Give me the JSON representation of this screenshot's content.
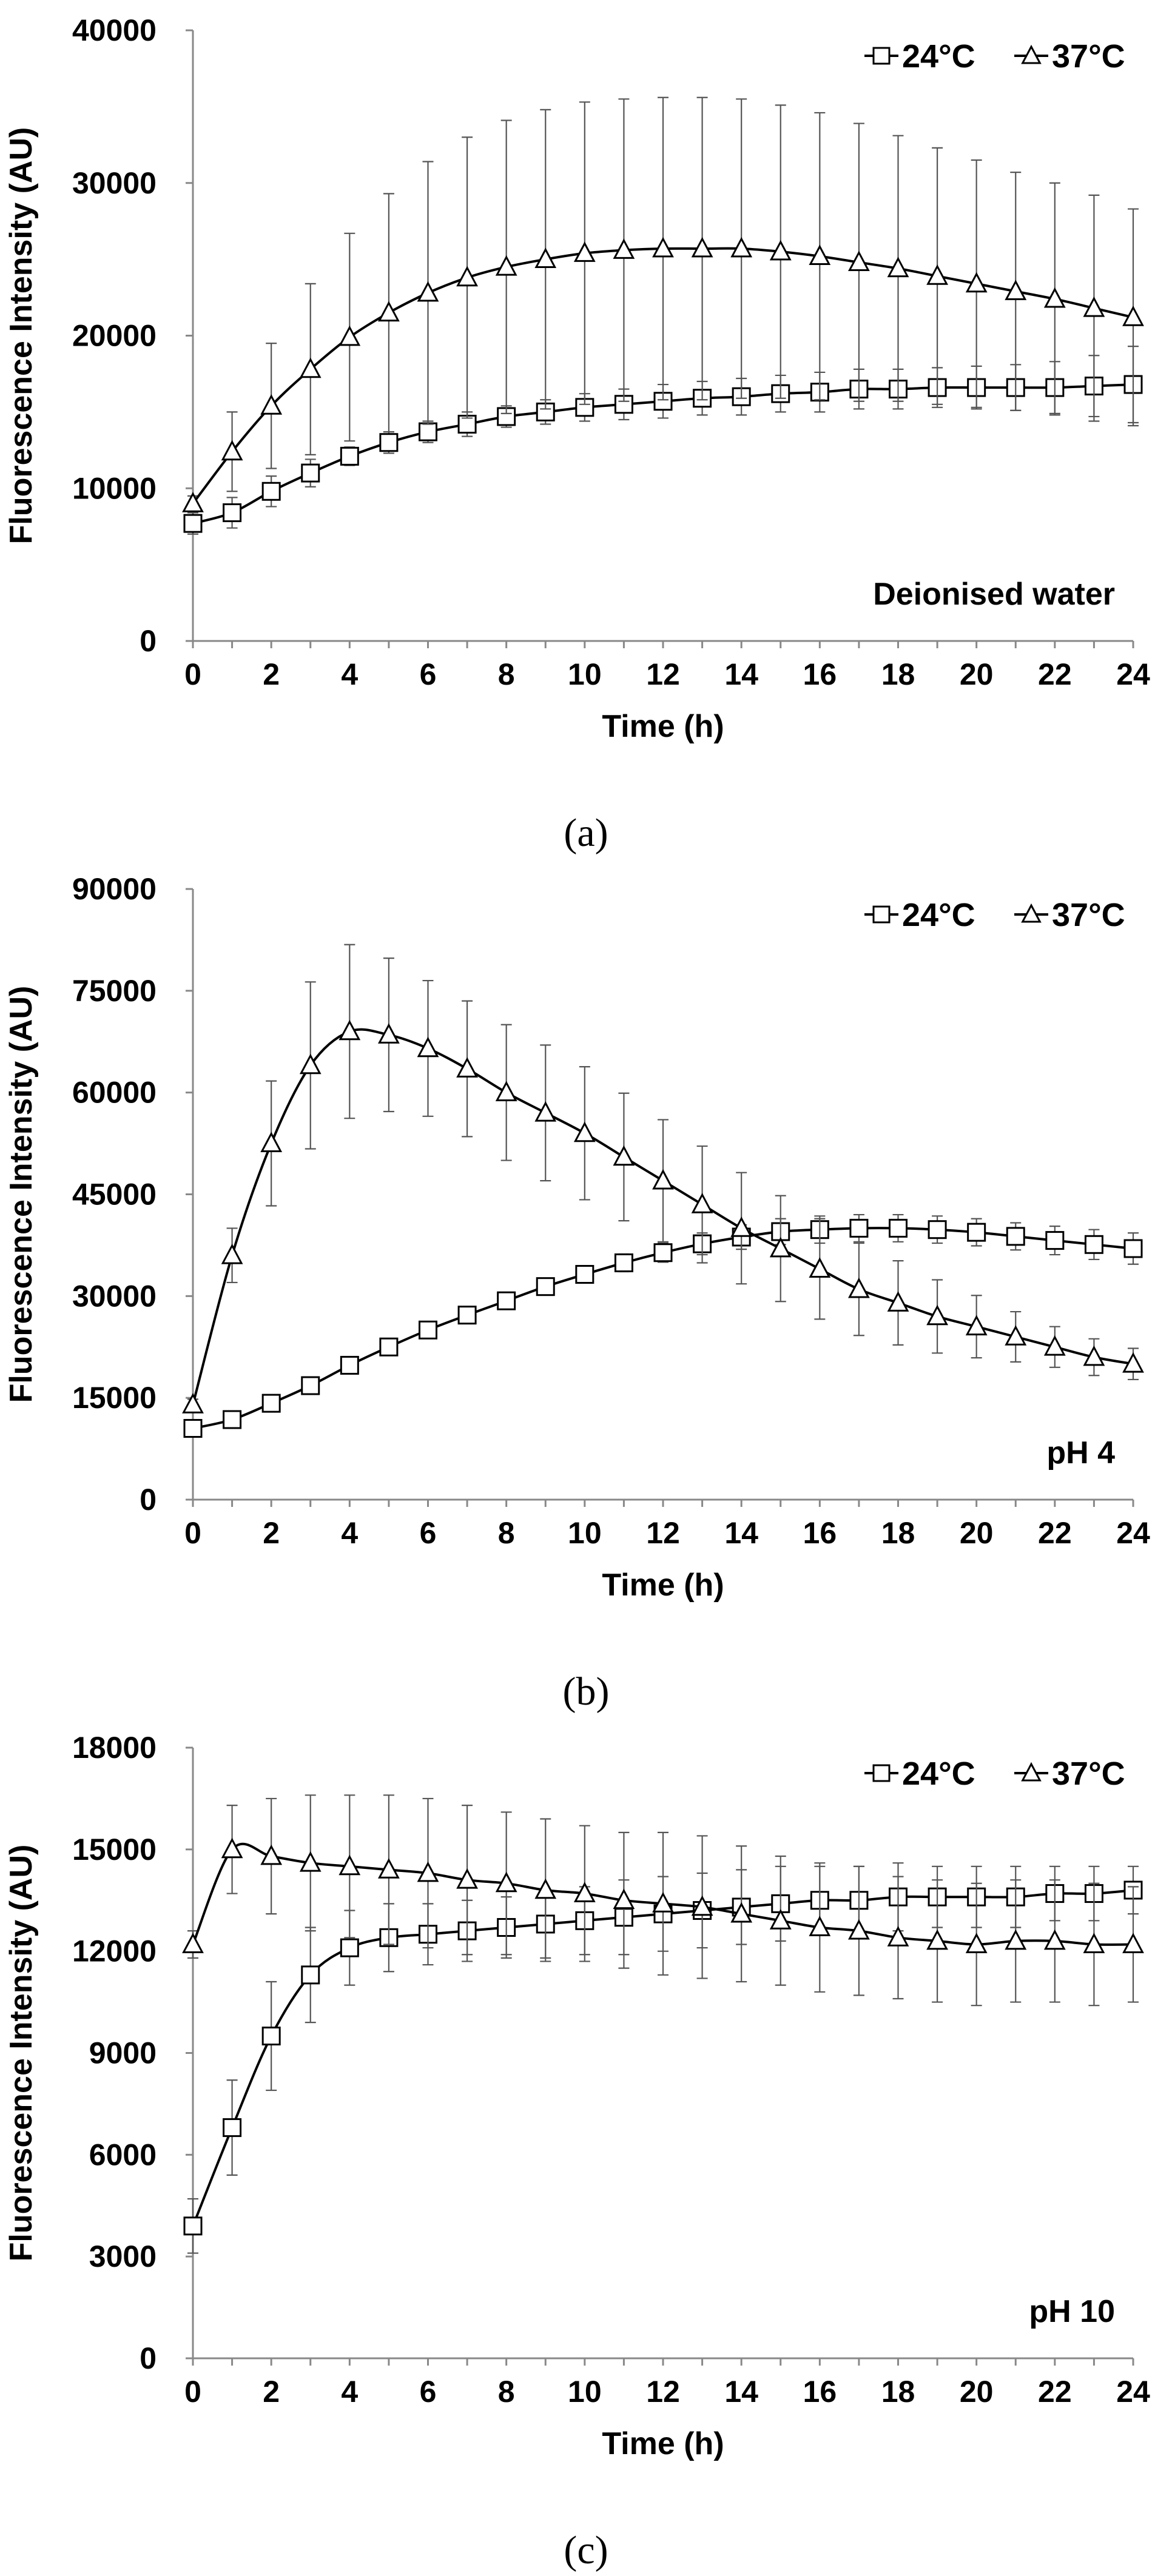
{
  "chart_data": [
    {
      "type": "line",
      "panel": "a",
      "caption": "(a)",
      "annotation": "Deionised water",
      "xlabel": "Time (h)",
      "ylabel": "Fluorescence Intensity (AU)",
      "xlim": [
        0,
        24
      ],
      "ylim": [
        0,
        40000
      ],
      "xticks": [
        0,
        2,
        4,
        6,
        8,
        10,
        12,
        14,
        16,
        18,
        20,
        22,
        24
      ],
      "yticks": [
        0,
        10000,
        20000,
        30000,
        40000
      ],
      "ytick_labels": [
        "0",
        "10000",
        "20000",
        "30000",
        "40000"
      ],
      "legend_position": "top-right",
      "x": [
        0,
        1,
        2,
        3,
        4,
        5,
        6,
        7,
        8,
        9,
        10,
        11,
        12,
        13,
        14,
        15,
        16,
        17,
        18,
        19,
        20,
        21,
        22,
        23,
        24
      ],
      "series": [
        {
          "name": "24°C",
          "marker": "square",
          "values": [
            7700,
            8400,
            9800,
            11000,
            12100,
            13000,
            13700,
            14200,
            14700,
            15000,
            15300,
            15500,
            15700,
            15900,
            16000,
            16200,
            16300,
            16500,
            16500,
            16600,
            16600,
            16600,
            16600,
            16700,
            16800
          ],
          "errors": [
            700,
            1000,
            1000,
            900,
            600,
            700,
            700,
            800,
            700,
            800,
            900,
            1000,
            1100,
            1100,
            1200,
            1200,
            1300,
            1300,
            1300,
            1300,
            1400,
            1500,
            1700,
            2000,
            2500
          ]
        },
        {
          "name": "37°C",
          "marker": "triangle",
          "values": [
            9000,
            12400,
            15400,
            17800,
            19900,
            21500,
            22800,
            23800,
            24500,
            25000,
            25400,
            25600,
            25700,
            25700,
            25700,
            25500,
            25200,
            24800,
            24400,
            23900,
            23400,
            22900,
            22400,
            21800,
            21200
          ],
          "errors": [
            500,
            2600,
            4100,
            5600,
            6800,
            7800,
            8600,
            9200,
            9600,
            9800,
            9900,
            9900,
            9900,
            9900,
            9800,
            9600,
            9400,
            9100,
            8700,
            8400,
            8100,
            7800,
            7600,
            7400,
            7100
          ]
        }
      ]
    },
    {
      "type": "line",
      "panel": "b",
      "caption": "(b)",
      "annotation": "pH 4",
      "xlabel": "Time (h)",
      "ylabel": "Fluorescence Intensity (AU)",
      "xlim": [
        0,
        24
      ],
      "ylim": [
        0,
        90000
      ],
      "xticks": [
        0,
        2,
        4,
        6,
        8,
        10,
        12,
        14,
        16,
        18,
        20,
        22,
        24
      ],
      "yticks": [
        0,
        15000,
        30000,
        45000,
        60000,
        75000,
        90000
      ],
      "ytick_labels": [
        "0",
        "15000",
        "30000",
        "45000",
        "60000",
        "75000",
        "90000"
      ],
      "legend_position": "top-right",
      "x": [
        0,
        1,
        2,
        3,
        4,
        5,
        6,
        7,
        8,
        9,
        10,
        11,
        12,
        13,
        14,
        15,
        16,
        17,
        18,
        19,
        20,
        21,
        22,
        23,
        24
      ],
      "series": [
        {
          "name": "24°C",
          "marker": "square",
          "values": [
            10500,
            11800,
            14200,
            16800,
            19800,
            22500,
            25000,
            27200,
            29300,
            31400,
            33200,
            34900,
            36400,
            37700,
            38700,
            39500,
            39800,
            40000,
            40000,
            39800,
            39400,
            38800,
            38200,
            37600,
            37000
          ],
          "errors": [
            1200,
            700,
            600,
            600,
            800,
            800,
            800,
            900,
            1000,
            1100,
            1200,
            1300,
            1400,
            1600,
            1800,
            1900,
            2000,
            2000,
            2000,
            2000,
            2000,
            2000,
            2100,
            2200,
            2300
          ]
        },
        {
          "name": "37°C",
          "marker": "triangle",
          "values": [
            14000,
            36000,
            52500,
            64000,
            69000,
            68500,
            66500,
            63500,
            60000,
            57000,
            54000,
            50500,
            47000,
            43500,
            40000,
            37000,
            34000,
            31000,
            29000,
            27000,
            25500,
            24000,
            22500,
            21000,
            20000
          ],
          "errors": [
            800,
            4000,
            9200,
            12300,
            12800,
            11300,
            10000,
            10000,
            10000,
            10000,
            9800,
            9400,
            9000,
            8600,
            8200,
            7800,
            7400,
            6800,
            6200,
            5400,
            4600,
            3700,
            3000,
            2700,
            2300
          ]
        }
      ]
    },
    {
      "type": "line",
      "panel": "c",
      "caption": "(c)",
      "annotation": "pH 10",
      "xlabel": "Time (h)",
      "ylabel": "Fluorescence Intensity (AU)",
      "xlim": [
        0,
        24
      ],
      "ylim": [
        0,
        18000
      ],
      "xticks": [
        0,
        2,
        4,
        6,
        8,
        10,
        12,
        14,
        16,
        18,
        20,
        22,
        24
      ],
      "yticks": [
        0,
        3000,
        6000,
        9000,
        12000,
        15000,
        18000
      ],
      "ytick_labels": [
        "0",
        "3000",
        "6000",
        "9000",
        "12000",
        "15000",
        "18000"
      ],
      "legend_position": "top-right",
      "x": [
        0,
        1,
        2,
        3,
        4,
        5,
        6,
        7,
        8,
        9,
        10,
        11,
        12,
        13,
        14,
        15,
        16,
        17,
        18,
        19,
        20,
        21,
        22,
        23,
        24
      ],
      "series": [
        {
          "name": "24°C",
          "marker": "square",
          "values": [
            3900,
            6800,
            9500,
            11300,
            12100,
            12400,
            12500,
            12600,
            12700,
            12800,
            12900,
            13000,
            13100,
            13200,
            13300,
            13400,
            13500,
            13500,
            13600,
            13600,
            13600,
            13600,
            13700,
            13700,
            13800
          ],
          "errors": [
            800,
            1400,
            1600,
            1400,
            1100,
            1000,
            900,
            900,
            900,
            1000,
            1000,
            1100,
            1100,
            1100,
            1100,
            1100,
            1000,
            1000,
            1000,
            900,
            900,
            900,
            800,
            800,
            700
          ]
        },
        {
          "name": "37°C",
          "marker": "triangle",
          "values": [
            12200,
            15000,
            14800,
            14600,
            14500,
            14400,
            14300,
            14100,
            14000,
            13800,
            13700,
            13500,
            13400,
            13300,
            13100,
            12900,
            12700,
            12600,
            12400,
            12300,
            12200,
            12300,
            12300,
            12200,
            12200
          ],
          "errors": [
            400,
            1300,
            1700,
            2000,
            2100,
            2200,
            2200,
            2200,
            2100,
            2100,
            2000,
            2000,
            2100,
            2100,
            2000,
            1900,
            1900,
            1900,
            1800,
            1800,
            1800,
            1800,
            1800,
            1800,
            1700
          ]
        }
      ]
    }
  ],
  "colors": {
    "line": "#000000",
    "marker_fill": "#ffffff",
    "error_bar": "#555555"
  }
}
